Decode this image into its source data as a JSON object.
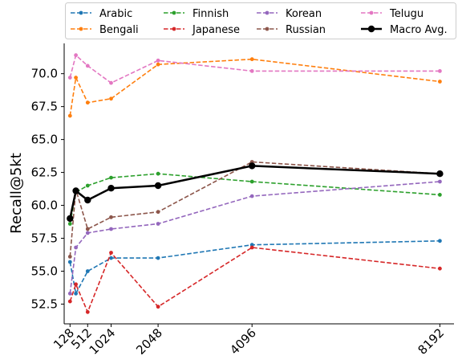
{
  "chart_data": {
    "type": "line",
    "xlabel": "",
    "ylabel": "Recall@5kt",
    "x": [
      128,
      256,
      512,
      1024,
      2048,
      4096,
      8192
    ],
    "x_tick_values": [
      128,
      512,
      1024,
      2048,
      4096,
      8192
    ],
    "x_tick_labels": [
      "128",
      "512",
      "1024",
      "2048",
      "4096",
      "8192"
    ],
    "y_ticks": [
      52.5,
      55.0,
      57.5,
      60.0,
      62.5,
      65.0,
      67.5,
      70.0
    ],
    "y_tick_labels": [
      "52.5",
      "55.0",
      "57.5",
      "60.0",
      "62.5",
      "65.0",
      "67.5",
      "70.0"
    ],
    "xlim": [
      0,
      8500
    ],
    "ylim": [
      51.0,
      72.3
    ],
    "grid": false,
    "legend_position": "top",
    "series": [
      {
        "name": "Arabic",
        "color": "#1f77b4",
        "style": "dashed",
        "values": [
          55.7,
          53.3,
          55.0,
          56.0,
          56.0,
          57.0,
          57.3
        ]
      },
      {
        "name": "Bengali",
        "color": "#ff7f0e",
        "style": "dashed",
        "values": [
          66.8,
          69.7,
          67.8,
          68.1,
          70.7,
          71.1,
          69.4
        ]
      },
      {
        "name": "Finnish",
        "color": "#2ca02c",
        "style": "dashed",
        "values": [
          58.6,
          61.0,
          61.5,
          62.1,
          62.4,
          61.8,
          60.8
        ]
      },
      {
        "name": "Japanese",
        "color": "#d62728",
        "style": "dashed",
        "values": [
          52.7,
          54.0,
          51.9,
          56.4,
          52.3,
          56.8,
          55.2
        ]
      },
      {
        "name": "Korean",
        "color": "#9467bd",
        "style": "dashed",
        "values": [
          53.3,
          56.8,
          57.9,
          58.2,
          58.6,
          60.7,
          61.8
        ]
      },
      {
        "name": "Russian",
        "color": "#8c564b",
        "style": "dashed",
        "values": [
          56.1,
          61.2,
          58.2,
          59.1,
          59.5,
          63.3,
          62.4
        ]
      },
      {
        "name": "Telugu",
        "color": "#e377c2",
        "style": "dashed",
        "values": [
          69.7,
          71.4,
          70.6,
          69.3,
          71.0,
          70.2,
          70.2
        ]
      },
      {
        "name": "Macro Avg.",
        "color": "#000000",
        "style": "solid",
        "values": [
          59.0,
          61.1,
          60.4,
          61.3,
          61.5,
          63.0,
          62.4
        ]
      }
    ]
  }
}
